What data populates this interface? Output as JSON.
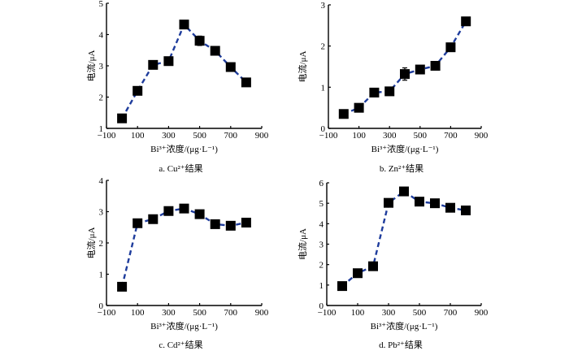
{
  "chart_data": [
    {
      "type": "line",
      "panel": "a",
      "caption": "a. Cu²⁺结果",
      "xlabel": "Bi³⁺浓度/(μg·L⁻¹)",
      "ylabel": "电流/μA",
      "xlim": [
        -100,
        900
      ],
      "ylim": [
        1,
        5
      ],
      "xticks": [
        -100,
        100,
        300,
        500,
        700,
        900
      ],
      "yticks": [
        1,
        2,
        3,
        4,
        5
      ],
      "grid": false,
      "series": [
        {
          "name": "Cu²⁺",
          "x": [
            0,
            100,
            200,
            300,
            400,
            500,
            600,
            700,
            800
          ],
          "y": [
            1.32,
            2.2,
            3.03,
            3.15,
            4.32,
            3.8,
            3.48,
            2.96,
            2.47
          ],
          "err": [
            0.05,
            0.1,
            0.05,
            0.05,
            0.05,
            0.15,
            0.05,
            0.05,
            0.08
          ]
        }
      ]
    },
    {
      "type": "line",
      "panel": "b",
      "caption": "b. Zn²⁺结果",
      "xlabel": "Bi³⁺浓度/(μg·L⁻¹)",
      "ylabel": "电流/μA",
      "xlim": [
        -100,
        900
      ],
      "ylim": [
        0,
        3
      ],
      "xticks": [
        -100,
        100,
        300,
        500,
        700,
        900
      ],
      "yticks": [
        0,
        1,
        2,
        3
      ],
      "grid": false,
      "series": [
        {
          "name": "Zn²⁺",
          "x": [
            0,
            100,
            200,
            300,
            400,
            500,
            600,
            700,
            800
          ],
          "y": [
            0.35,
            0.5,
            0.87,
            0.9,
            1.32,
            1.43,
            1.52,
            1.97,
            2.6
          ],
          "err": [
            0.03,
            0.03,
            0.04,
            0.04,
            0.15,
            0.04,
            0.07,
            0.07,
            0.07
          ]
        }
      ]
    },
    {
      "type": "line",
      "panel": "c",
      "caption": "c. Cd²⁺结果",
      "xlabel": "Bi³⁺浓度/(μg·L⁻¹)",
      "ylabel": "电流/μA",
      "xlim": [
        -100,
        900
      ],
      "ylim": [
        0,
        4
      ],
      "xticks": [
        -100,
        100,
        300,
        500,
        700,
        900
      ],
      "yticks": [
        0,
        1,
        2,
        3,
        4
      ],
      "grid": false,
      "series": [
        {
          "name": "Cd²⁺",
          "x": [
            0,
            100,
            200,
            300,
            400,
            500,
            600,
            700,
            800
          ],
          "y": [
            0.6,
            2.63,
            2.76,
            3.02,
            3.1,
            2.92,
            2.6,
            2.55,
            2.65
          ],
          "err": [
            0.03,
            0.03,
            0.03,
            0.04,
            0.05,
            0.04,
            0.03,
            0.03,
            0.05
          ]
        }
      ]
    },
    {
      "type": "line",
      "panel": "d",
      "caption": "d. Pb²⁺结果",
      "xlabel": "Bi³⁺浓度/(μg·L⁻¹)",
      "ylabel": "电流/μA",
      "xlim": [
        -100,
        900
      ],
      "ylim": [
        0,
        6
      ],
      "xticks": [
        -100,
        100,
        300,
        500,
        700,
        900
      ],
      "yticks": [
        0,
        1,
        2,
        3,
        4,
        5,
        6
      ],
      "grid": false,
      "series": [
        {
          "name": "Pb²⁺",
          "x": [
            0,
            100,
            200,
            300,
            400,
            500,
            600,
            700,
            800
          ],
          "y": [
            0.95,
            1.58,
            1.92,
            5.02,
            5.58,
            5.08,
            5.0,
            4.78,
            4.65
          ],
          "err": [
            0.05,
            0.05,
            0.05,
            0.05,
            0.05,
            0.05,
            0.05,
            0.05,
            0.05
          ]
        }
      ]
    }
  ],
  "colors": {
    "line": "#1e3c9c",
    "marker": "#000000"
  }
}
